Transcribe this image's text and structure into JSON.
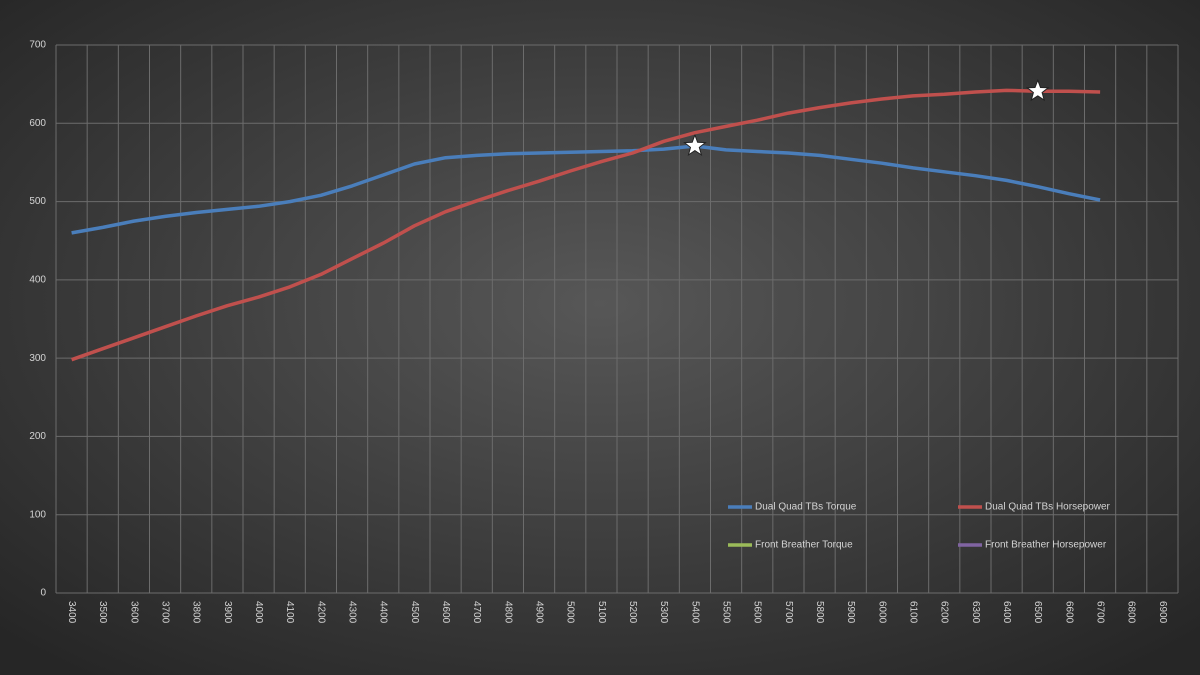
{
  "chart_data": {
    "type": "line",
    "categories": [
      "3400",
      "3500",
      "3600",
      "3700",
      "3800",
      "3900",
      "4000",
      "4100",
      "4200",
      "4300",
      "4400",
      "4500",
      "4600",
      "4700",
      "4800",
      "4900",
      "5000",
      "5100",
      "5200",
      "5300",
      "5400",
      "5500",
      "5600",
      "5700",
      "5800",
      "5900",
      "6000",
      "6100",
      "6200",
      "6300",
      "6400",
      "6500",
      "6600",
      "6700",
      "6800",
      "6900"
    ],
    "series": [
      {
        "name": "Dual Quad TBs Torque",
        "color": "#4a7ebb",
        "marker": {
          "shape": "star",
          "category": "5400"
        },
        "values": [
          460,
          467,
          475,
          481,
          486,
          490,
          494,
          500,
          508,
          520,
          534,
          548,
          556,
          559,
          561,
          562,
          563,
          564,
          565,
          567,
          571,
          566,
          564,
          562,
          559,
          554,
          549,
          543,
          538,
          533,
          527,
          519,
          510,
          502,
          null,
          null
        ]
      },
      {
        "name": "Dual Quad TBs Horsepower",
        "color": "#c0504d",
        "marker": {
          "shape": "star",
          "category": "6500"
        },
        "values": [
          298,
          312,
          326,
          340,
          354,
          367,
          378,
          391,
          407,
          427,
          447,
          469,
          487,
          501,
          514,
          526,
          539,
          551,
          562,
          577,
          588,
          596,
          604,
          613,
          620,
          626,
          631,
          635,
          637,
          640,
          642,
          641,
          641,
          640,
          null,
          null
        ]
      },
      {
        "name": "Front Breather Torque",
        "color": "#9bbb59",
        "values": [
          null,
          null,
          null,
          null,
          null,
          null,
          null,
          null,
          null,
          null,
          null,
          null,
          null,
          null,
          null,
          null,
          null,
          null,
          null,
          null,
          null,
          null,
          null,
          null,
          null,
          null,
          null,
          null,
          null,
          null,
          null,
          null,
          null,
          null,
          null,
          null
        ]
      },
      {
        "name": "Front Breather Horsepower",
        "color": "#8064a2",
        "values": [
          null,
          null,
          null,
          null,
          null,
          null,
          null,
          null,
          null,
          null,
          null,
          null,
          null,
          null,
          null,
          null,
          null,
          null,
          null,
          null,
          null,
          null,
          null,
          null,
          null,
          null,
          null,
          null,
          null,
          null,
          null,
          null,
          null,
          null,
          null,
          null
        ]
      }
    ],
    "ylim": [
      0,
      700
    ],
    "yticks": [
      0,
      100,
      200,
      300,
      400,
      500,
      600,
      700
    ],
    "grid": true
  }
}
